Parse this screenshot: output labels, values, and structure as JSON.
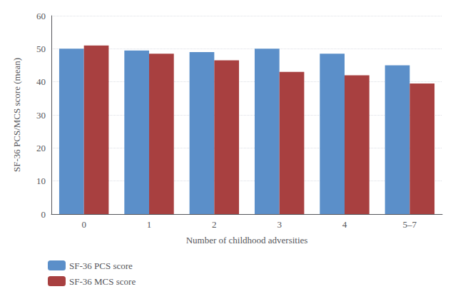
{
  "chart_data": {
    "type": "bar",
    "categories": [
      "0",
      "1",
      "2",
      "3",
      "4",
      "5–7"
    ],
    "series": [
      {
        "name": "SF-36 PCS score",
        "color": "#5b8fc9",
        "values": [
          50.0,
          49.5,
          49.0,
          50.0,
          48.5,
          45.0
        ]
      },
      {
        "name": "SF-36 MCS score",
        "color": "#a84040",
        "values": [
          51.0,
          48.5,
          46.5,
          43.0,
          42.0,
          39.5
        ]
      }
    ],
    "xlabel": "Number of childhood adversities",
    "ylabel": "SF-36 PCS/MCS score (mean)",
    "ylim": [
      0,
      60
    ],
    "yticks": [
      0,
      10,
      20,
      30,
      40,
      50,
      60
    ],
    "grid": true,
    "legend": "lower left"
  }
}
